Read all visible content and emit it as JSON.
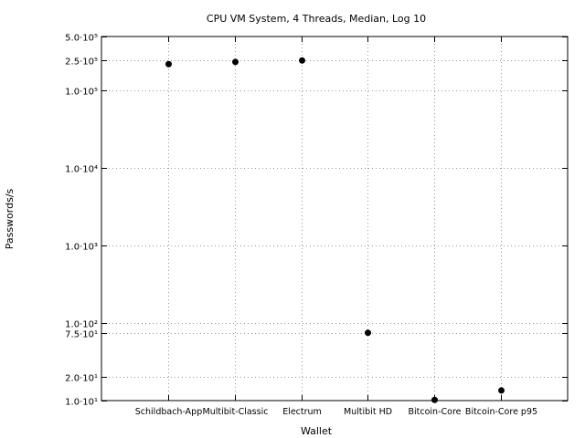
{
  "chart_data": {
    "type": "scatter",
    "title": "CPU VM System, 4 Threads, Median, Log 10",
    "xlabel": "Wallet",
    "ylabel": "Passwords/s",
    "yscale": "log",
    "ylim": [
      10,
      500000
    ],
    "grid": true,
    "categories": [
      "Schildbach-App",
      "Multibit-Classic",
      "Electrum",
      "Multibit HD",
      "Bitcoin-Core",
      "Bitcoin-Core p95"
    ],
    "values": [
      220000,
      235000,
      245000,
      75,
      10.2,
      13.5
    ],
    "y_ticks": [
      {
        "value": 500000,
        "label": "5.0·10⁵"
      },
      {
        "value": 250000,
        "label": "2.5·10⁵"
      },
      {
        "value": 100000,
        "label": "1.0·10⁵"
      },
      {
        "value": 10000,
        "label": "1.0·10⁴"
      },
      {
        "value": 1000,
        "label": "1.0·10³"
      },
      {
        "value": 100,
        "label": "1.0·10²"
      },
      {
        "value": 75,
        "label": "7.5·10¹"
      },
      {
        "value": 20,
        "label": "2.0·10¹"
      },
      {
        "value": 10,
        "label": "1.0·10¹"
      }
    ],
    "marker_color": "#000000",
    "grid_color": "#999999"
  }
}
